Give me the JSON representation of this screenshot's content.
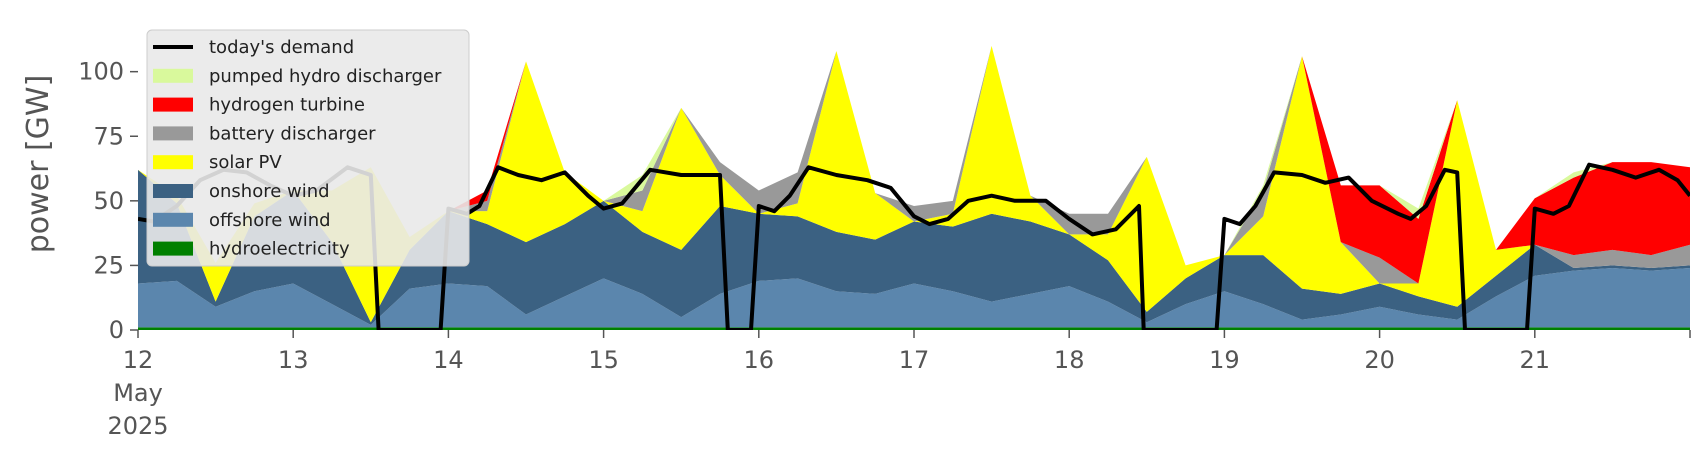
{
  "chart_data": {
    "type": "area",
    "ylabel": "power [GW]",
    "xlabel": "",
    "ylim": [
      0,
      120
    ],
    "x_range": [
      12,
      22
    ],
    "grid": false,
    "legend_position": "top-left",
    "yticks": [
      0,
      25,
      50,
      75,
      100
    ],
    "xticks": [
      {
        "x": 12,
        "label": [
          "12",
          "May",
          "2025"
        ]
      },
      {
        "x": 13,
        "label": [
          "13"
        ]
      },
      {
        "x": 14,
        "label": [
          "14"
        ]
      },
      {
        "x": 15,
        "label": [
          "15"
        ]
      },
      {
        "x": 16,
        "label": [
          "16"
        ]
      },
      {
        "x": 17,
        "label": [
          "17"
        ]
      },
      {
        "x": 18,
        "label": [
          "18"
        ]
      },
      {
        "x": 19,
        "label": [
          "19"
        ]
      },
      {
        "x": 20,
        "label": [
          "20"
        ]
      },
      {
        "x": 21,
        "label": [
          "21"
        ]
      }
    ],
    "legend": [
      {
        "name": "today's demand",
        "kind": "line",
        "color": "#000000"
      },
      {
        "name": "pumped hydro discharger",
        "kind": "area",
        "color": "#d9f99c"
      },
      {
        "name": "hydrogen turbine",
        "kind": "area",
        "color": "#ff0000"
      },
      {
        "name": "battery discharger",
        "kind": "area",
        "color": "#999999"
      },
      {
        "name": "solar PV",
        "kind": "area",
        "color": "#ffff00"
      },
      {
        "name": "onshore wind",
        "kind": "area",
        "color": "#3b6182"
      },
      {
        "name": "offshore wind",
        "kind": "area",
        "color": "#5b86ad"
      },
      {
        "name": "hydroelectricity",
        "kind": "area",
        "color": "#008000"
      }
    ],
    "x": [
      12.0,
      12.25,
      12.5,
      12.75,
      13.0,
      13.25,
      13.5,
      13.75,
      14.0,
      14.25,
      14.5,
      14.75,
      15.0,
      15.25,
      15.5,
      15.75,
      16.0,
      16.25,
      16.5,
      16.75,
      17.0,
      17.25,
      17.5,
      17.75,
      18.0,
      18.25,
      18.5,
      18.75,
      19.0,
      19.25,
      19.5,
      19.75,
      20.0,
      20.25,
      20.5,
      20.75,
      21.0,
      21.25,
      21.5,
      21.75,
      22.0
    ],
    "series": [
      {
        "name": "hydroelectricity",
        "color": "#008000",
        "values": [
          1,
          1,
          1,
          1,
          1,
          1,
          1,
          1,
          1,
          1,
          1,
          1,
          1,
          1,
          1,
          1,
          1,
          1,
          1,
          1,
          1,
          1,
          1,
          1,
          1,
          1,
          1,
          1,
          1,
          1,
          1,
          1,
          1,
          1,
          1,
          1,
          1,
          1,
          1,
          1,
          1
        ]
      },
      {
        "name": "offshore wind",
        "color": "#5b86ad",
        "values": [
          17,
          18,
          8,
          14,
          17,
          9,
          1,
          15,
          17,
          16,
          5,
          12,
          19,
          13,
          4,
          13,
          18,
          19,
          14,
          13,
          17,
          14,
          10,
          13,
          16,
          10,
          2,
          9,
          14,
          9,
          3,
          5,
          8,
          5,
          3,
          12,
          20,
          22,
          23,
          22,
          23
        ]
      },
      {
        "name": "onshore wind",
        "color": "#3b6182",
        "values": [
          44,
          30,
          2,
          29,
          36,
          24,
          1,
          15,
          28,
          24,
          28,
          28,
          30,
          24,
          26,
          34,
          26,
          24,
          23,
          21,
          24,
          25,
          34,
          28,
          20,
          16,
          4,
          10,
          14,
          19,
          12,
          8,
          9,
          7,
          5,
          8,
          12,
          1,
          1,
          1,
          1
        ]
      },
      {
        "name": "solar PV",
        "color": "#ffff00",
        "values": [
          0,
          3,
          15,
          5,
          0,
          20,
          60,
          5,
          0,
          5,
          70,
          20,
          0,
          8,
          55,
          12,
          0,
          5,
          70,
          18,
          0,
          5,
          65,
          10,
          0,
          10,
          60,
          5,
          0,
          15,
          90,
          20,
          0,
          5,
          80,
          10,
          0,
          0,
          0,
          0,
          0
        ]
      },
      {
        "name": "battery discharger",
        "color": "#999999",
        "values": [
          0,
          0,
          0,
          0,
          0,
          0,
          0,
          0,
          0,
          4,
          0,
          0,
          0,
          8,
          0,
          5,
          9,
          12,
          0,
          0,
          6,
          5,
          0,
          0,
          8,
          8,
          0,
          0,
          0,
          10,
          0,
          0,
          10,
          0,
          0,
          0,
          0,
          5,
          6,
          5,
          8
        ]
      },
      {
        "name": "hydrogen turbine",
        "color": "#ff0000",
        "values": [
          0,
          0,
          0,
          0,
          0,
          0,
          0,
          0,
          0,
          4,
          0,
          0,
          0,
          0,
          0,
          0,
          0,
          0,
          0,
          0,
          0,
          0,
          0,
          0,
          0,
          0,
          0,
          0,
          0,
          0,
          0,
          22,
          28,
          25,
          0,
          0,
          18,
          30,
          34,
          36,
          30
        ]
      },
      {
        "name": "pumped hydro discharger",
        "color": "#d9f99c",
        "values": [
          0,
          0,
          0,
          0,
          0,
          0,
          0,
          0,
          0,
          0,
          0,
          0,
          0,
          6,
          0,
          0,
          0,
          0,
          0,
          0,
          0,
          0,
          0,
          0,
          0,
          0,
          0,
          0,
          0,
          2,
          0,
          0,
          0,
          4,
          0,
          0,
          0,
          2,
          0,
          0,
          0
        ]
      }
    ],
    "demand": {
      "name": "today's demand",
      "color": "#000000",
      "points": [
        [
          12.0,
          43
        ],
        [
          12.1,
          42
        ],
        [
          12.25,
          48
        ],
        [
          12.4,
          58
        ],
        [
          12.55,
          62
        ],
        [
          12.7,
          61
        ],
        [
          12.85,
          56
        ],
        [
          13.0,
          52
        ],
        [
          13.15,
          54
        ],
        [
          13.35,
          63
        ],
        [
          13.5,
          60
        ],
        [
          13.55,
          0
        ],
        [
          13.95,
          0
        ],
        [
          14.0,
          47
        ],
        [
          14.12,
          45
        ],
        [
          14.2,
          48
        ],
        [
          14.32,
          63
        ],
        [
          14.45,
          60
        ],
        [
          14.6,
          58
        ],
        [
          14.75,
          61
        ],
        [
          14.9,
          52
        ],
        [
          15.0,
          47
        ],
        [
          15.12,
          49
        ],
        [
          15.3,
          62
        ],
        [
          15.5,
          60
        ],
        [
          15.75,
          60
        ],
        [
          15.8,
          0
        ],
        [
          15.95,
          0
        ],
        [
          16.0,
          48
        ],
        [
          16.1,
          46
        ],
        [
          16.2,
          52
        ],
        [
          16.32,
          63
        ],
        [
          16.5,
          60
        ],
        [
          16.7,
          58
        ],
        [
          16.85,
          55
        ],
        [
          17.0,
          44
        ],
        [
          17.1,
          41
        ],
        [
          17.22,
          43
        ],
        [
          17.35,
          50
        ],
        [
          17.5,
          52
        ],
        [
          17.65,
          50
        ],
        [
          17.85,
          50
        ],
        [
          18.0,
          43
        ],
        [
          18.15,
          37
        ],
        [
          18.3,
          39
        ],
        [
          18.45,
          48
        ],
        [
          18.48,
          0
        ],
        [
          18.95,
          0
        ],
        [
          19.0,
          43
        ],
        [
          19.1,
          41
        ],
        [
          19.2,
          48
        ],
        [
          19.32,
          61
        ],
        [
          19.5,
          60
        ],
        [
          19.65,
          57
        ],
        [
          19.8,
          59
        ],
        [
          19.95,
          50
        ],
        [
          20.12,
          45
        ],
        [
          20.2,
          43
        ],
        [
          20.3,
          48
        ],
        [
          20.42,
          62
        ],
        [
          20.5,
          61
        ],
        [
          20.55,
          0
        ],
        [
          20.95,
          0
        ],
        [
          21.0,
          47
        ],
        [
          21.12,
          45
        ],
        [
          21.22,
          48
        ],
        [
          21.35,
          64
        ],
        [
          21.5,
          62
        ],
        [
          21.65,
          59
        ],
        [
          21.8,
          62
        ],
        [
          21.92,
          58
        ],
        [
          22.0,
          52
        ]
      ]
    }
  }
}
